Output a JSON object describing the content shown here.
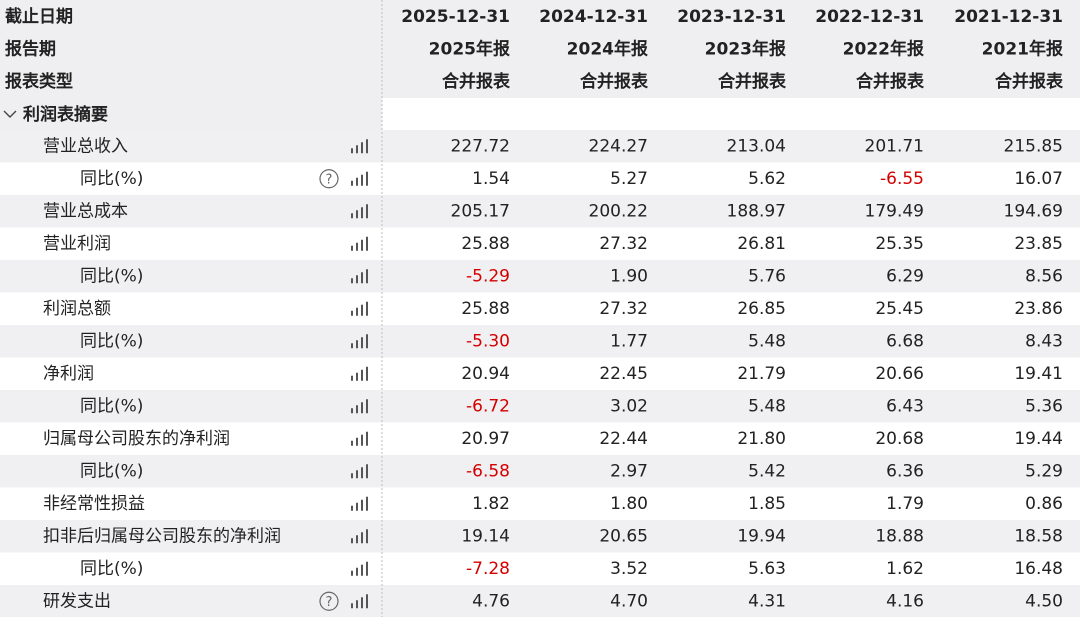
{
  "header": {
    "labels": [
      "截止日期",
      "报告期",
      "报表类型"
    ],
    "columns": [
      {
        "date": "2025-12-31",
        "period": "2025年报",
        "type": "合并报表"
      },
      {
        "date": "2024-12-31",
        "period": "2024年报",
        "type": "合并报表"
      },
      {
        "date": "2023-12-31",
        "period": "2023年报",
        "type": "合并报表"
      },
      {
        "date": "2022-12-31",
        "period": "2022年报",
        "type": "合并报表"
      },
      {
        "date": "2021-12-31",
        "period": "2021年报",
        "type": "合并报表"
      }
    ]
  },
  "section": {
    "title": "利润表摘要",
    "rows": [
      {
        "label": "营业总收入",
        "level": 1,
        "values": [
          "227.72",
          "224.27",
          "213.04",
          "201.71",
          "215.85"
        ]
      },
      {
        "label": "同比(%)",
        "level": 2,
        "help": true,
        "values": [
          "1.54",
          "5.27",
          "5.62",
          "-6.55",
          "16.07"
        ]
      },
      {
        "label": "营业总成本",
        "level": 1,
        "values": [
          "205.17",
          "200.22",
          "188.97",
          "179.49",
          "194.69"
        ]
      },
      {
        "label": "营业利润",
        "level": 1,
        "values": [
          "25.88",
          "27.32",
          "26.81",
          "25.35",
          "23.85"
        ]
      },
      {
        "label": "同比(%)",
        "level": 2,
        "values": [
          "-5.29",
          "1.90",
          "5.76",
          "6.29",
          "8.56"
        ]
      },
      {
        "label": "利润总额",
        "level": 1,
        "values": [
          "25.88",
          "27.32",
          "26.85",
          "25.45",
          "23.86"
        ]
      },
      {
        "label": "同比(%)",
        "level": 2,
        "values": [
          "-5.30",
          "1.77",
          "5.48",
          "6.68",
          "8.43"
        ]
      },
      {
        "label": "净利润",
        "level": 1,
        "values": [
          "20.94",
          "22.45",
          "21.79",
          "20.66",
          "19.41"
        ]
      },
      {
        "label": "同比(%)",
        "level": 2,
        "values": [
          "-6.72",
          "3.02",
          "5.48",
          "6.43",
          "5.36"
        ]
      },
      {
        "label": "归属母公司股东的净利润",
        "level": 1,
        "values": [
          "20.97",
          "22.44",
          "21.80",
          "20.68",
          "19.44"
        ]
      },
      {
        "label": "同比(%)",
        "level": 2,
        "values": [
          "-6.58",
          "2.97",
          "5.42",
          "6.36",
          "5.29"
        ]
      },
      {
        "label": "非经常性损益",
        "level": 1,
        "values": [
          "1.82",
          "1.80",
          "1.85",
          "1.79",
          "0.86"
        ]
      },
      {
        "label": "扣非后归属母公司股东的净利润",
        "level": 1,
        "values": [
          "19.14",
          "20.65",
          "19.94",
          "18.88",
          "18.58"
        ]
      },
      {
        "label": "同比(%)",
        "level": 2,
        "values": [
          "-7.28",
          "3.52",
          "5.63",
          "1.62",
          "16.48"
        ]
      },
      {
        "label": "研发支出",
        "level": 1,
        "help": true,
        "values": [
          "4.76",
          "4.70",
          "4.31",
          "4.16",
          "4.50"
        ]
      }
    ]
  }
}
